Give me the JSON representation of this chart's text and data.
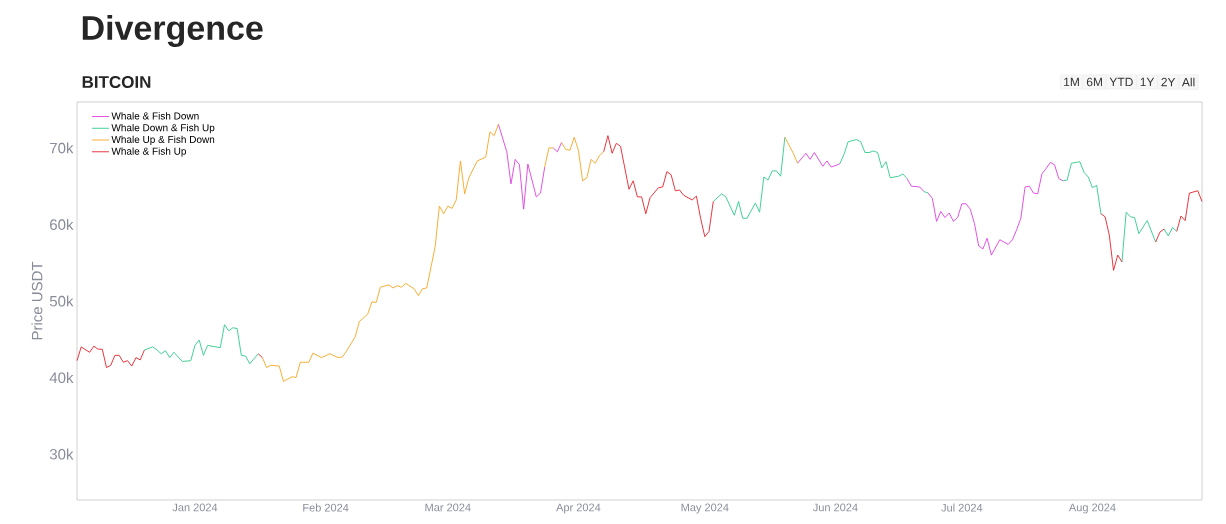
{
  "chart_data": {
    "type": "line",
    "title": "Divergence",
    "subtitle": "BITCOIN",
    "ylabel": "Price USDT",
    "xlim": [
      "2023-12-04",
      "2024-08-27"
    ],
    "ylim": [
      24000,
      76000
    ],
    "xticks": [
      {
        "value": "2024-01-01",
        "label": "Jan 2024"
      },
      {
        "value": "2024-02-01",
        "label": "Feb 2024"
      },
      {
        "value": "2024-03-01",
        "label": "Mar 2024"
      },
      {
        "value": "2024-04-01",
        "label": "Apr 2024"
      },
      {
        "value": "2024-05-01",
        "label": "May 2024"
      },
      {
        "value": "2024-06-01",
        "label": "Jun 2024"
      },
      {
        "value": "2024-07-01",
        "label": "Jul 2024"
      },
      {
        "value": "2024-08-01",
        "label": "Aug 2024"
      }
    ],
    "yticks": [
      {
        "value": 30000,
        "label": "30k"
      },
      {
        "value": 40000,
        "label": "40k"
      },
      {
        "value": 50000,
        "label": "50k"
      },
      {
        "value": 60000,
        "label": "60k"
      },
      {
        "value": 70000,
        "label": "70k"
      }
    ],
    "legend": "top left",
    "annotations": [
      "1M",
      "6M",
      "YTD",
      "1Y",
      "2Y",
      "All"
    ],
    "series": [
      {
        "name": "Whale & Fish Down",
        "color": "#e040e0",
        "x": [
          "2024-03-13",
          "2024-03-15",
          "2024-03-16",
          "2024-03-17",
          "2024-03-18",
          "2024-03-19",
          "2024-03-20",
          "2024-03-22",
          "2024-03-23",
          "2024-03-24",
          null,
          "2024-03-26",
          "2024-03-27",
          "2024-03-28",
          null,
          "2024-05-23",
          "2024-05-25",
          "2024-05-26",
          "2024-05-27",
          "2024-05-29",
          "2024-05-30",
          "2024-05-31",
          "2024-06-02",
          null,
          "2024-06-18",
          "2024-06-19",
          "2024-06-21",
          "2024-06-22",
          null,
          "2024-06-23",
          "2024-06-24",
          "2024-06-25",
          "2024-06-26",
          "2024-06-27",
          "2024-06-28",
          "2024-06-29",
          "2024-06-30",
          "2024-07-01",
          "2024-07-02",
          "2024-07-03",
          "2024-07-04",
          "2024-07-05",
          "2024-07-06",
          "2024-07-07",
          "2024-07-08",
          "2024-07-10",
          "2024-07-12",
          "2024-07-13",
          "2024-07-14",
          "2024-07-15",
          "2024-07-16",
          "2024-07-17",
          "2024-07-18",
          "2024-07-19",
          "2024-07-20",
          "2024-07-21",
          "2024-07-22",
          "2024-07-23",
          "2024-07-24",
          "2024-07-25"
        ],
        "values": [
          73100,
          69500,
          65300,
          68500,
          67800,
          62000,
          67900,
          63600,
          64100,
          67500,
          null,
          70000,
          69500,
          70700,
          null,
          68000,
          69300,
          68500,
          69400,
          67600,
          68300,
          67500,
          67900,
          null,
          66000,
          65000,
          64900,
          64300,
          null,
          64100,
          63400,
          60400,
          61700,
          60900,
          61500,
          60400,
          60900,
          62700,
          62700,
          62000,
          60100,
          57200,
          56800,
          58200,
          56000,
          58000,
          57400,
          58000,
          59300,
          60800,
          64900,
          65000,
          64100,
          64000,
          66600,
          67300,
          68100,
          67800,
          66000,
          65700
        ]
      },
      {
        "name": "Whale Down & Fish Up",
        "color": "#2ecc8a",
        "x": [
          "2023-12-20",
          "2023-12-22",
          "2023-12-23",
          "2023-12-24",
          "2023-12-25",
          "2023-12-26",
          "2023-12-27",
          "2023-12-29",
          "2023-12-31",
          "2024-01-01",
          "2024-01-02",
          "2024-01-03",
          "2024-01-04",
          "2024-01-06",
          "2024-01-07",
          "2024-01-08",
          "2024-01-09",
          "2024-01-10",
          "2024-01-11",
          "2024-01-12",
          "2024-01-13",
          "2024-01-14",
          "2024-01-16",
          null,
          "2024-05-03",
          "2024-05-05",
          "2024-05-06",
          "2024-05-08",
          "2024-05-09",
          "2024-05-10",
          "2024-05-11",
          "2024-05-13",
          "2024-05-14",
          "2024-05-15",
          "2024-05-16",
          "2024-05-17",
          "2024-05-18",
          "2024-05-19",
          "2024-05-20",
          null,
          "2024-06-02",
          "2024-06-03",
          "2024-06-04",
          "2024-06-06",
          "2024-06-07",
          "2024-06-08",
          "2024-06-09",
          "2024-06-10",
          "2024-06-11",
          "2024-06-12",
          "2024-06-13",
          "2024-06-14",
          "2024-06-16",
          "2024-06-17",
          "2024-06-18",
          null,
          "2024-06-22",
          "2024-06-23",
          null,
          "2024-07-25",
          "2024-07-26",
          "2024-07-27",
          "2024-07-29",
          "2024-07-30",
          "2024-07-31",
          "2024-08-01",
          "2024-08-02",
          "2024-08-03",
          null,
          "2024-08-08",
          "2024-08-09",
          "2024-08-10",
          "2024-08-11",
          "2024-08-12",
          "2024-08-14",
          "2024-08-16",
          null,
          "2024-08-18",
          "2024-08-19",
          "2024-08-20",
          "2024-08-21"
        ],
        "values": [
          43600,
          44000,
          43600,
          43100,
          43500,
          42600,
          43300,
          42100,
          42200,
          44200,
          44900,
          42900,
          44200,
          44000,
          43900,
          46900,
          46100,
          46500,
          46400,
          42900,
          42800,
          41800,
          43100,
          null,
          63000,
          64000,
          63600,
          61200,
          63000,
          60800,
          60800,
          62800,
          61600,
          66200,
          65800,
          67000,
          67000,
          66300,
          71400,
          null,
          67900,
          69100,
          70800,
          71100,
          70800,
          69400,
          69400,
          69600,
          69400,
          67400,
          68200,
          66100,
          66300,
          66600,
          66000,
          null,
          64300,
          64100,
          null,
          65700,
          65800,
          68000,
          68200,
          66800,
          66200,
          64800,
          65100,
          61400,
          null,
          55100,
          61600,
          61000,
          60900,
          58800,
          60500,
          57700,
          null,
          59400,
          58500,
          59600,
          59100
        ]
      },
      {
        "name": "Whale Up & Fish Down",
        "color": "#f5a623",
        "x": [
          "2024-01-17",
          "2024-01-18",
          "2024-01-19",
          "2024-01-21",
          "2024-01-22",
          "2024-01-24",
          "2024-01-25",
          "2024-01-26",
          "2024-01-28",
          "2024-01-29",
          "2024-01-31",
          "2024-02-02",
          "2024-02-04",
          "2024-02-05",
          "2024-02-06",
          "2024-02-08",
          "2024-02-09",
          "2024-02-11",
          "2024-02-12",
          "2024-02-13",
          "2024-02-14",
          "2024-02-16",
          "2024-02-17",
          "2024-02-18",
          "2024-02-19",
          "2024-02-20",
          "2024-02-22",
          "2024-02-23",
          "2024-02-24",
          "2024-02-25",
          "2024-02-27",
          "2024-02-28",
          "2024-02-29",
          "2024-03-01",
          "2024-03-02",
          "2024-03-03",
          "2024-03-04",
          "2024-03-05",
          "2024-03-06",
          "2024-03-08",
          "2024-03-10",
          "2024-03-11",
          "2024-03-12",
          "2024-03-13",
          null,
          "2024-03-24",
          "2024-03-25",
          "2024-03-26",
          null,
          "2024-03-28",
          "2024-03-29",
          "2024-03-30",
          "2024-03-31",
          "2024-04-01",
          "2024-04-02",
          "2024-04-03",
          "2024-04-04",
          "2024-04-05",
          "2024-04-06",
          "2024-04-07",
          null,
          "2024-05-20",
          "2024-05-22",
          "2024-05-23"
        ],
        "values": [
          42600,
          41300,
          41600,
          41500,
          39500,
          40100,
          40000,
          42000,
          42000,
          43200,
          42600,
          43100,
          42600,
          42700,
          43500,
          45300,
          47300,
          48300,
          49900,
          49800,
          51800,
          52100,
          51700,
          52000,
          51800,
          52300,
          51600,
          50700,
          51600,
          51700,
          57100,
          62400,
          61400,
          62400,
          62100,
          63200,
          68300,
          64000,
          66100,
          68300,
          68800,
          72100,
          71600,
          73100,
          null,
          67500,
          70000,
          70000,
          null,
          70700,
          69800,
          69700,
          71400,
          69700,
          65700,
          66100,
          68500,
          68000,
          69000,
          69500,
          null,
          71400,
          69300,
          68000
        ]
      },
      {
        "name": "Whale & Fish Up",
        "color": "#e8202a",
        "x": [
          "2023-12-04",
          "2023-12-05",
          "2023-12-07",
          "2023-12-08",
          "2023-12-09",
          "2023-12-10",
          "2023-12-11",
          "2023-12-12",
          "2023-12-13",
          "2023-12-14",
          "2023-12-15",
          "2023-12-16",
          "2023-12-17",
          "2023-12-18",
          "2023-12-19",
          "2023-12-20",
          null,
          "2024-01-16",
          "2024-01-17",
          null,
          "2024-04-07",
          "2024-04-08",
          "2024-04-09",
          "2024-04-10",
          "2024-04-11",
          "2024-04-13",
          "2024-04-14",
          "2024-04-15",
          "2024-04-16",
          "2024-04-17",
          "2024-04-18",
          "2024-04-20",
          "2024-04-21",
          "2024-04-22",
          "2024-04-23",
          "2024-04-24",
          "2024-04-25",
          "2024-04-26",
          "2024-04-28",
          "2024-04-29",
          "2024-04-30",
          "2024-05-01",
          "2024-05-02",
          "2024-05-03",
          null,
          "2024-08-03",
          "2024-08-04",
          "2024-08-05",
          "2024-08-06",
          "2024-08-07",
          "2024-08-08",
          null,
          "2024-08-16",
          "2024-08-17",
          "2024-08-18",
          null,
          "2024-08-21",
          "2024-08-22",
          "2024-08-23",
          "2024-08-24",
          "2024-08-26",
          "2024-08-27"
        ],
        "values": [
          42200,
          44000,
          43300,
          44100,
          43700,
          43700,
          41300,
          41600,
          42900,
          42900,
          42000,
          42200,
          41500,
          42600,
          42300,
          43600,
          null,
          43100,
          42600,
          null,
          69500,
          71600,
          69300,
          70600,
          70200,
          64600,
          65700,
          63600,
          63600,
          61400,
          63500,
          64800,
          64900,
          66900,
          66500,
          64400,
          64500,
          63800,
          63200,
          63700,
          60800,
          58400,
          59100,
          63000,
          null,
          61400,
          61000,
          58600,
          54000,
          56000,
          55100,
          null,
          57700,
          59000,
          59400,
          null,
          59100,
          61100,
          60500,
          64100,
          64400,
          63000
        ]
      }
    ]
  }
}
